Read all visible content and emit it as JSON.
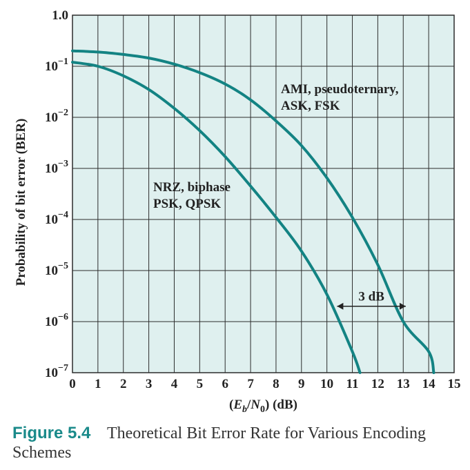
{
  "caption": {
    "figure_number": "Figure 5.4",
    "text": "Theoretical Bit Error Rate for Various Encoding Schemes"
  },
  "chart_data": {
    "type": "line",
    "title": "",
    "xlabel": "(E_b/N_0) (dB)",
    "ylabel": "Probability of bit error (BER)",
    "xlim": [
      0,
      15
    ],
    "ylim": [
      1e-07,
      1
    ],
    "yscale": "log",
    "grid": true,
    "x_ticks": [
      0,
      1,
      2,
      3,
      4,
      5,
      6,
      7,
      8,
      9,
      10,
      11,
      12,
      13,
      14,
      15
    ],
    "y_ticks": [
      {
        "value": 1,
        "label": "1.0"
      },
      {
        "value": 0.1,
        "base": "10",
        "exp": "−1"
      },
      {
        "value": 0.01,
        "base": "10",
        "exp": "−2"
      },
      {
        "value": 0.001,
        "base": "10",
        "exp": "−3"
      },
      {
        "value": 0.0001,
        "base": "10",
        "exp": "−4"
      },
      {
        "value": 1e-05,
        "base": "10",
        "exp": "−5"
      },
      {
        "value": 1e-06,
        "base": "10",
        "exp": "−6"
      },
      {
        "value": 1e-07,
        "base": "10",
        "exp": "−7"
      }
    ],
    "series": [
      {
        "label_lines": [
          "AMI, pseudoternary,",
          "ASK, FSK"
        ],
        "x": [
          0,
          1,
          2,
          3,
          4,
          5,
          6,
          7,
          8,
          9,
          10,
          11,
          12,
          13,
          14,
          14.2
        ],
        "y": [
          0.2,
          0.19,
          0.17,
          0.145,
          0.11,
          0.075,
          0.045,
          0.022,
          0.0085,
          0.0028,
          0.00065,
          0.00011,
          1.3e-05,
          1e-06,
          2.6e-07,
          1e-07
        ]
      },
      {
        "label_lines": [
          "NRZ, biphase",
          "PSK, QPSK"
        ],
        "x": [
          0,
          1,
          2,
          3,
          4,
          5,
          6,
          7,
          8,
          9,
          10,
          11,
          11.3
        ],
        "y": [
          0.12,
          0.1,
          0.065,
          0.035,
          0.015,
          0.0055,
          0.0017,
          0.00045,
          0.00011,
          2.4e-05,
          3.4e-06,
          2.6e-07,
          1e-07
        ]
      }
    ],
    "annotations": [
      {
        "text": "3 dB",
        "x_from": 10.4,
        "x_to": 13.1,
        "y": 2e-06
      }
    ],
    "colors": {
      "background": "#dff0ef",
      "grid": "#2b2b2b",
      "line": "#138383"
    }
  }
}
